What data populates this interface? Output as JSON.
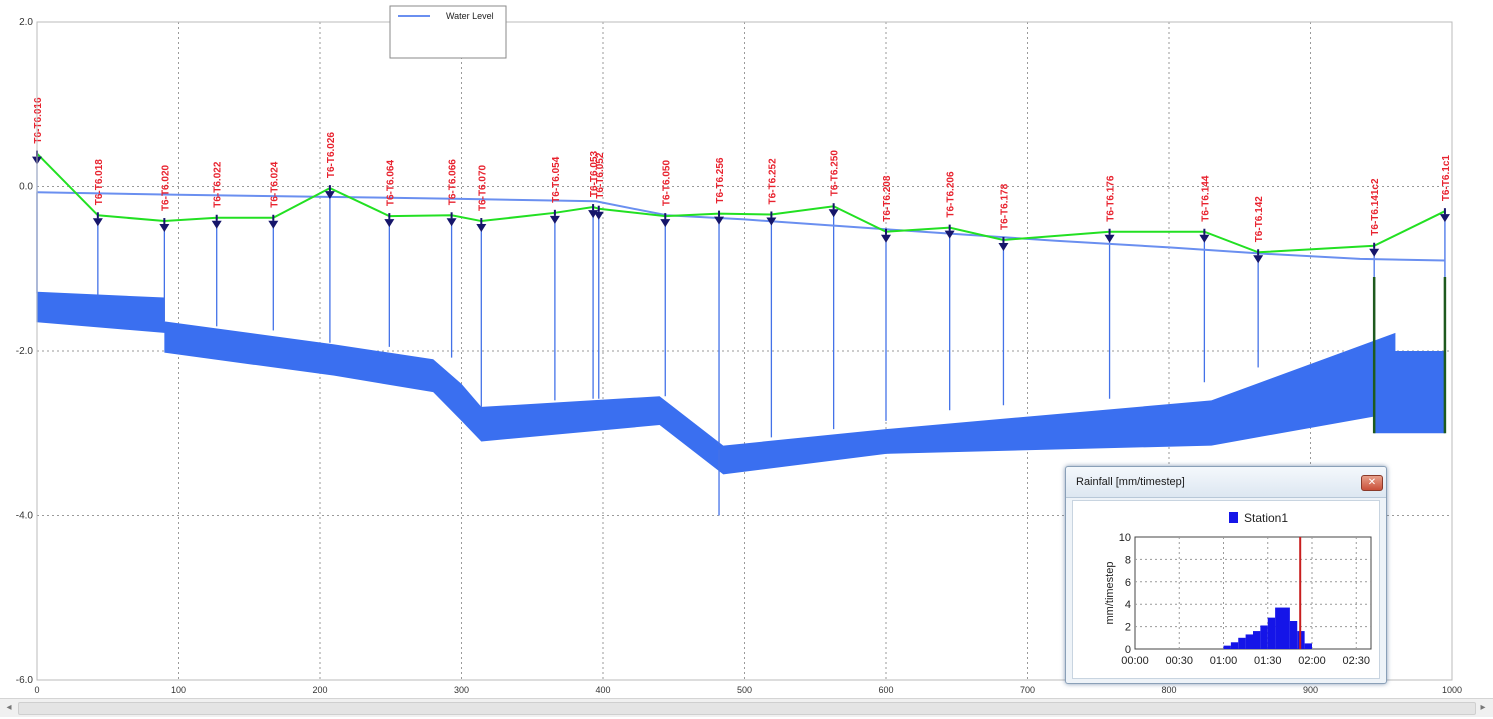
{
  "profile": {
    "legend_label": "Water Level",
    "colors": {
      "water_level": "#6a8ff0",
      "ground": "#22e022",
      "pipe": "#3a6ff0",
      "structure": "#4472e8",
      "label": "#e8232f",
      "marker": "#16166a",
      "outfall_edge": "#1e5a1e"
    },
    "y_ticks": [
      "2.0",
      "0.0",
      "-2.0",
      "-4.0",
      "-6.0"
    ],
    "x_ticks": [
      "0",
      "100",
      "200",
      "300",
      "400",
      "500",
      "600",
      "700",
      "800",
      "900",
      "1000"
    ],
    "node_labels": [
      "T6-T6.016",
      "T6-T6.018",
      "T6-T6.020",
      "T6-T6.022",
      "T6-T6.024",
      "T6-T6.026",
      "T6-T6.064",
      "T6-T6.066",
      "T6-T6.070",
      "T6-T6.054",
      "T6-T6.053",
      "T6-T6.052",
      "T6-T6.050",
      "T6-T6.256",
      "T6-T6.252",
      "T6-T6.250",
      "T6-T6.208",
      "T6-T6.206",
      "T6-T6.178",
      "T6-T6.176",
      "T6-T6.144",
      "T6-T6.142",
      "T6-T6.141c2",
      "T6-T6.1c1"
    ]
  },
  "chart_data": [
    {
      "type": "line",
      "title": "",
      "xlabel": "",
      "ylabel": "",
      "xlim": [
        0,
        1000
      ],
      "ylim": [
        -6.0,
        2.0
      ],
      "grid": true,
      "legend": [
        "Water Level"
      ],
      "legend_position": "top-center",
      "series": [
        {
          "name": "Water Level",
          "x": [
            0,
            100,
            300,
            395,
            445,
            500,
            600,
            720,
            800,
            870,
            935,
            995
          ],
          "y": [
            -0.07,
            -0.1,
            -0.15,
            -0.18,
            -0.35,
            -0.4,
            -0.52,
            -0.66,
            -0.74,
            -0.82,
            -0.88,
            -0.9
          ]
        },
        {
          "x": [
            0,
            43,
            90,
            127,
            167,
            207,
            249,
            293,
            314,
            366,
            393,
            397,
            444,
            482,
            519,
            563,
            600,
            645,
            683,
            758,
            825,
            863,
            945,
            995
          ],
          "y": [
            0.4,
            -0.35,
            -0.42,
            -0.38,
            -0.38,
            -0.02,
            -0.36,
            -0.35,
            -0.42,
            -0.32,
            -0.25,
            -0.27,
            -0.36,
            -0.33,
            -0.34,
            -0.24,
            -0.55,
            -0.5,
            -0.65,
            -0.55,
            -0.55,
            -0.8,
            -0.72,
            -0.3
          ]
        }
      ],
      "node_chainage": [
        0,
        43,
        90,
        127,
        167,
        207,
        249,
        293,
        314,
        366,
        393,
        397,
        444,
        482,
        519,
        563,
        600,
        645,
        683,
        758,
        825,
        863,
        945,
        995
      ]
    },
    {
      "type": "bar",
      "title": "Rainfall [mm/timestep]",
      "xlabel": "",
      "ylabel": "mm/timestep",
      "legend": [
        "Station1"
      ],
      "legend_position": "top-center",
      "grid": true,
      "ylim": [
        0,
        10
      ],
      "y_ticks": [
        "0",
        "2",
        "4",
        "6",
        "8",
        "10"
      ],
      "x_ticks": [
        "00:00",
        "00:30",
        "01:00",
        "01:30",
        "02:00",
        "02:30"
      ],
      "x_minutes": [
        60,
        65,
        70,
        75,
        80,
        85,
        90,
        95,
        100,
        105,
        110,
        115
      ],
      "series": [
        {
          "name": "Station1",
          "values": [
            0.3,
            0.6,
            1.0,
            1.3,
            1.6,
            2.1,
            2.8,
            3.7,
            3.7,
            2.5,
            1.6,
            0.5
          ]
        }
      ],
      "marker_time": "01:52",
      "colors": {
        "bars": "#1515e8",
        "marker": "#c81e1e"
      }
    }
  ],
  "rainfall_window": {
    "title": "Rainfall [mm/timestep]",
    "close_icon": "close-icon",
    "legend_label": "Station1",
    "ylabel": "mm/timestep"
  },
  "scrollbar": {
    "left_arrow": "◂",
    "right_arrow": "▸"
  }
}
